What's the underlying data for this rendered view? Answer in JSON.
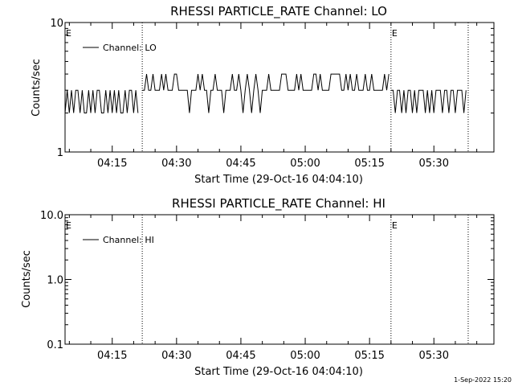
{
  "footer": {
    "timestamp": "1-Sep-2022 15:20"
  },
  "chart_data": [
    {
      "type": "line",
      "title": "RHESSI PARTICLE_RATE Channel: LO",
      "xlabel": "Start Time (29-Oct-16 04:04:10)",
      "ylabel": "Counts/sec",
      "yscale": "log",
      "ylim": [
        1,
        10
      ],
      "y_ticks": [
        "1",
        "10"
      ],
      "xlim": [
        "04:04",
        "05:44"
      ],
      "x_ticks": [
        "04:15",
        "04:30",
        "04:45",
        "05:00",
        "05:15",
        "05:30"
      ],
      "legend": {
        "label": "Channel: LO",
        "placement": "top-left"
      },
      "eclipse_marker": "E",
      "eclipse_lines": [
        "04:22",
        "05:20",
        "05:38"
      ],
      "eclipse_labels_at": [
        "04:04",
        "05:20"
      ],
      "series": [
        {
          "name": "Channel: LO",
          "segments": [
            {
              "t_start": "04:04",
              "t_step_min": 0.5,
              "values": [
                2,
                3,
                2,
                3,
                2,
                3,
                3,
                2,
                3,
                2,
                2,
                3,
                2,
                3,
                2,
                3,
                3,
                2,
                2,
                3,
                2,
                3,
                2,
                3,
                2,
                3,
                2,
                2,
                3,
                2,
                3,
                3,
                2,
                3,
                2
              ]
            },
            {
              "t_start": "04:22",
              "t_step_min": 0.5,
              "values": [
                3,
                3,
                4,
                3,
                3,
                4,
                3,
                3,
                3,
                4,
                3,
                4,
                3,
                3,
                3,
                4,
                4,
                3,
                3,
                3,
                3,
                3,
                2,
                3,
                3,
                3,
                4,
                3,
                4,
                3,
                3,
                2,
                3,
                3,
                4,
                3,
                3,
                3,
                2,
                3,
                3,
                3,
                4,
                3,
                3,
                4,
                3,
                2,
                3,
                4,
                3,
                2,
                3,
                4,
                3,
                2,
                3,
                3,
                3,
                4,
                3,
                3,
                3,
                3,
                3,
                4,
                4,
                4,
                3,
                3,
                3,
                3,
                4,
                3,
                4,
                3,
                3,
                3,
                3,
                3,
                4,
                4,
                3,
                4,
                3,
                3,
                3,
                3,
                4,
                4,
                4,
                4,
                4,
                3,
                3,
                4,
                3,
                4,
                3,
                3,
                4,
                3,
                3,
                3,
                4,
                3,
                3,
                4,
                3,
                3,
                3,
                3,
                3,
                4,
                3,
                4
              ]
            },
            {
              "t_start": "05:20",
              "t_step_min": 0.5,
              "values": [
                3,
                3,
                2,
                3,
                3,
                2,
                3,
                2,
                3,
                3,
                2,
                3,
                2,
                3,
                3,
                3,
                2,
                3,
                2,
                3,
                2,
                3,
                3,
                3,
                2,
                3,
                3,
                2,
                3,
                3,
                2,
                3,
                3,
                3,
                2,
                3
              ]
            }
          ]
        }
      ]
    },
    {
      "type": "line",
      "title": "RHESSI PARTICLE_RATE Channel: HI",
      "xlabel": "Start Time (29-Oct-16 04:04:10)",
      "ylabel": "Counts/sec",
      "yscale": "log",
      "ylim": [
        0.1,
        10
      ],
      "y_ticks": [
        "0.1",
        "1.0",
        "10.0"
      ],
      "xlim": [
        "04:04",
        "05:44"
      ],
      "x_ticks": [
        "04:15",
        "04:30",
        "04:45",
        "05:00",
        "05:15",
        "05:30"
      ],
      "legend": {
        "label": "Channel: HI",
        "placement": "top-left"
      },
      "eclipse_marker": "E",
      "eclipse_lines": [
        "04:22",
        "05:20",
        "05:38"
      ],
      "eclipse_labels_at": [
        "04:04",
        "05:20"
      ],
      "series": [
        {
          "name": "Channel: HI",
          "segments": []
        }
      ]
    }
  ]
}
